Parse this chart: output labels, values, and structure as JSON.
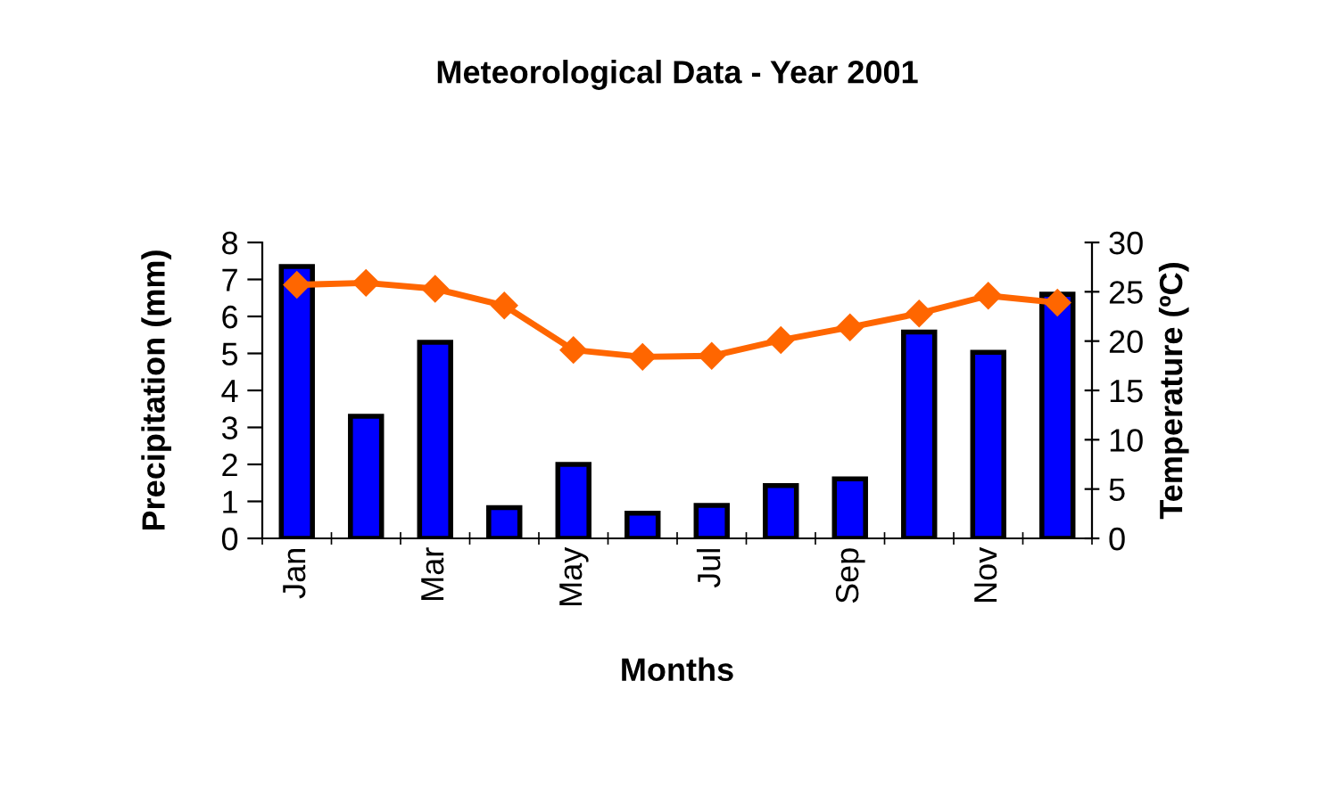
{
  "chart_data": {
    "type": "bar",
    "title": "Meteorological Data - Year 2001",
    "xlabel": "Months",
    "ylabel": "Precipitation (mm)",
    "y2label": "Temperature (ºC)",
    "categories": [
      "Jan",
      null,
      "Mar",
      null,
      "May",
      null,
      "Jul",
      null,
      "Sep",
      null,
      "Nov",
      null
    ],
    "series": [
      {
        "color": "#0000ff",
        "values": [
          7.35,
          3.3,
          5.3,
          0.83,
          2.0,
          0.68,
          0.89,
          1.43,
          1.61,
          5.58,
          5.03,
          6.6
        ]
      },
      {
        "type": "line",
        "axis": "y2",
        "color": "#ff6600",
        "marker": "diamond",
        "values": [
          25.7,
          25.9,
          25.3,
          23.6,
          19.1,
          18.4,
          18.5,
          20.1,
          21.4,
          22.8,
          24.6,
          23.9
        ]
      }
    ],
    "ylim": [
      0,
      8
    ],
    "yticks": [
      0,
      1,
      2,
      3,
      4,
      5,
      6,
      7,
      8
    ],
    "y2lim": [
      0,
      30
    ],
    "y2ticks": [
      0,
      5,
      10,
      15,
      20,
      25,
      30
    ],
    "grid": false,
    "legend": false
  }
}
